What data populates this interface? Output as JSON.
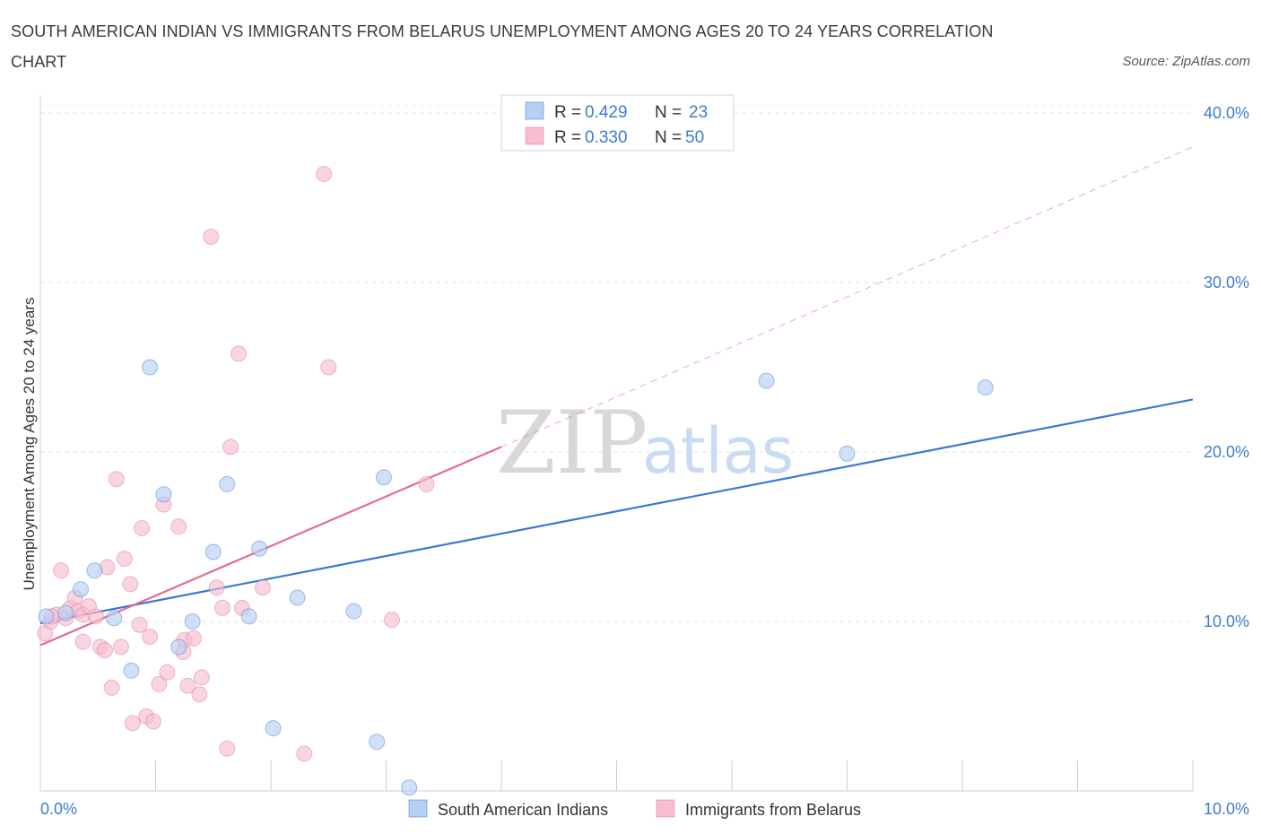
{
  "title": "SOUTH AMERICAN INDIAN VS IMMIGRANTS FROM BELARUS UNEMPLOYMENT AMONG AGES 20 TO 24 YEARS CORRELATION CHART",
  "source": "Source: ZipAtlas.com",
  "watermark": {
    "zip": "ZIP",
    "atlas": "atlas"
  },
  "colors": {
    "blue": "#3a78d4",
    "blue_fill": "#b7cff3",
    "pink": "#e36b96",
    "pink_fill": "#f6bfd0",
    "tick_text": "#3f7bd0"
  },
  "legend": {
    "r_label": "R =",
    "n_label": "N =",
    "rows": [
      {
        "r": "0.429",
        "n": "23"
      },
      {
        "r": "0.330",
        "n": "50"
      }
    ]
  },
  "chart_data": {
    "type": "scatter",
    "title": "SOUTH AMERICAN INDIAN VS IMMIGRANTS FROM BELARUS UNEMPLOYMENT AMONG AGES 20 TO 24 YEARS CORRELATION CHART",
    "xlabel": "",
    "ylabel": "Unemployment Among Ages 20 to 24 years",
    "xlim": [
      0,
      10
    ],
    "ylim": [
      0,
      40
    ],
    "x_tick_labels": [
      "0.0%",
      "10.0%"
    ],
    "y_ticks": [
      10,
      20,
      30,
      40
    ],
    "y_tick_labels": [
      "10.0%",
      "20.0%",
      "30.0%",
      "40.0%"
    ],
    "grid": true,
    "series": [
      {
        "name": "South American Indians",
        "color": "#3a78d4",
        "points": [
          [
            0.05,
            10.3
          ],
          [
            0.22,
            10.5
          ],
          [
            0.35,
            11.9
          ],
          [
            0.47,
            13.0
          ],
          [
            0.64,
            10.2
          ],
          [
            0.79,
            7.1
          ],
          [
            0.95,
            25.0
          ],
          [
            1.07,
            17.5
          ],
          [
            1.2,
            8.5
          ],
          [
            1.32,
            10.0
          ],
          [
            1.5,
            14.1
          ],
          [
            1.62,
            18.1
          ],
          [
            1.81,
            10.3
          ],
          [
            1.9,
            14.3
          ],
          [
            2.02,
            3.7
          ],
          [
            2.23,
            11.4
          ],
          [
            2.72,
            10.6
          ],
          [
            2.92,
            2.9
          ],
          [
            2.98,
            18.5
          ],
          [
            3.2,
            0.2
          ],
          [
            6.3,
            24.2
          ],
          [
            7.0,
            19.9
          ],
          [
            8.2,
            23.8
          ]
        ],
        "trend": {
          "x": [
            0,
            10
          ],
          "y": [
            9.9,
            23.1
          ],
          "style": "solid"
        }
      },
      {
        "name": "Immigrants from Belarus",
        "color": "#e36b96",
        "points": [
          [
            0.04,
            9.3
          ],
          [
            0.09,
            10.0
          ],
          [
            0.14,
            10.4
          ],
          [
            0.18,
            13.0
          ],
          [
            0.22,
            10.2
          ],
          [
            0.26,
            10.8
          ],
          [
            0.3,
            11.4
          ],
          [
            0.33,
            10.6
          ],
          [
            0.37,
            10.4
          ],
          [
            0.37,
            8.8
          ],
          [
            0.42,
            10.9
          ],
          [
            0.48,
            10.3
          ],
          [
            0.52,
            8.5
          ],
          [
            0.56,
            8.3
          ],
          [
            0.58,
            13.2
          ],
          [
            0.62,
            6.1
          ],
          [
            0.66,
            18.4
          ],
          [
            0.7,
            8.5
          ],
          [
            0.73,
            13.7
          ],
          [
            0.78,
            12.2
          ],
          [
            0.8,
            4.0
          ],
          [
            0.86,
            9.8
          ],
          [
            0.88,
            15.5
          ],
          [
            0.92,
            4.4
          ],
          [
            0.95,
            9.1
          ],
          [
            0.98,
            4.1
          ],
          [
            1.03,
            6.3
          ],
          [
            1.07,
            16.9
          ],
          [
            1.1,
            7.0
          ],
          [
            1.2,
            15.6
          ],
          [
            1.24,
            8.2
          ],
          [
            1.25,
            8.9
          ],
          [
            1.28,
            6.2
          ],
          [
            1.33,
            9.0
          ],
          [
            1.38,
            5.7
          ],
          [
            1.4,
            6.7
          ],
          [
            1.48,
            32.7
          ],
          [
            1.53,
            12.0
          ],
          [
            1.58,
            10.8
          ],
          [
            1.62,
            2.5
          ],
          [
            1.65,
            20.3
          ],
          [
            1.72,
            25.8
          ],
          [
            1.75,
            10.8
          ],
          [
            1.93,
            12.0
          ],
          [
            2.29,
            2.2
          ],
          [
            2.46,
            36.4
          ],
          [
            2.5,
            25.0
          ],
          [
            3.05,
            10.1
          ],
          [
            3.35,
            18.1
          ],
          [
            0.1,
            10.3
          ]
        ],
        "trend": {
          "x": [
            0,
            4.0
          ],
          "y": [
            8.6,
            20.3
          ],
          "style": "solid"
        },
        "trend_extension": {
          "x": [
            4.0,
            10
          ],
          "y": [
            20.3,
            38.0
          ],
          "style": "dashed"
        }
      }
    ],
    "legend_entries": [
      "South American Indians",
      "Immigrants from Belarus"
    ]
  }
}
